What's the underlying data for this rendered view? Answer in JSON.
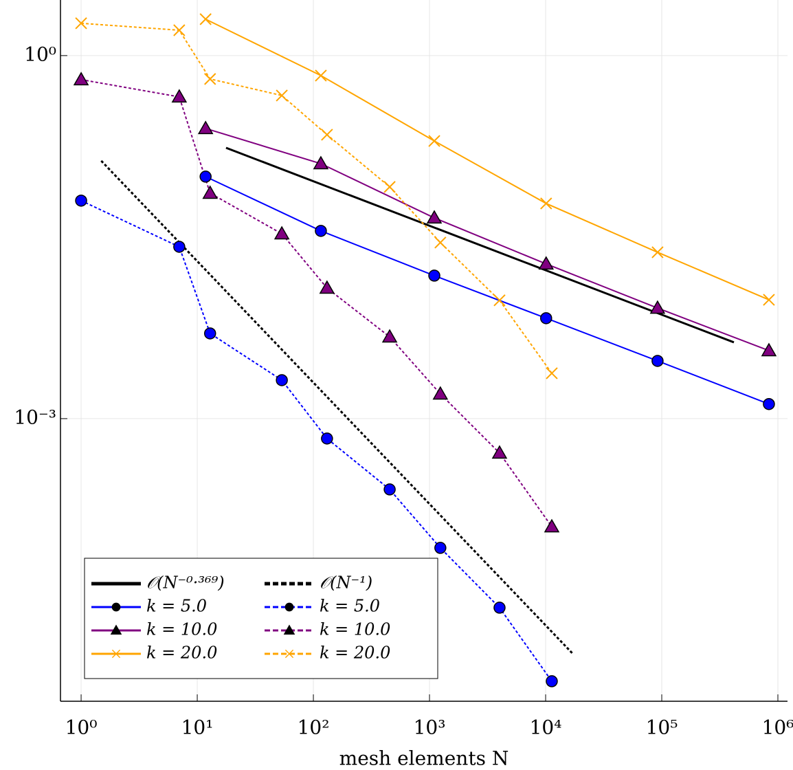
{
  "chart_data": {
    "type": "line",
    "xlabel": "mesh elements N",
    "xscale": "log",
    "yscale": "log",
    "grid": true,
    "xlim": [
      0.664,
      1210000
    ],
    "ylim": [
      4.62e-06,
      2.88
    ],
    "xticks": [
      {
        "value": 1,
        "label": "10⁰"
      },
      {
        "value": 10,
        "label": "10¹"
      },
      {
        "value": 100,
        "label": "10²"
      },
      {
        "value": 1000,
        "label": "10³"
      },
      {
        "value": 10000,
        "label": "10⁴"
      },
      {
        "value": 100000,
        "label": "10⁵"
      },
      {
        "value": 1000000,
        "label": "10⁶"
      }
    ],
    "yticks": [
      {
        "value": 1,
        "label": "10⁰"
      },
      {
        "value": 0.001,
        "label": "10⁻³"
      }
    ],
    "legend": "lower left",
    "series": [
      {
        "name": "𝒪(N⁻⁰·³⁶⁹)",
        "color": "#000000",
        "style": "solid",
        "x": [
          17.7,
          418000
        ],
        "values": [
          0.173,
          0.00427
        ]
      },
      {
        "name": "k = 5.0",
        "color": "#0000ff",
        "style": "solid",
        "marker": "circle",
        "x": [
          11.8,
          116,
          1100,
          10100,
          92000,
          837000
        ],
        "values": [
          0.1,
          0.0356,
          0.0152,
          0.00676,
          0.003,
          0.00132
        ]
      },
      {
        "name": "k = 10.0",
        "color": "#800080",
        "style": "solid",
        "marker": "triangle",
        "x": [
          11.8,
          116,
          1100,
          10100,
          92000,
          837000
        ],
        "values": [
          0.25,
          0.128,
          0.0456,
          0.019,
          0.0082,
          0.00365
        ]
      },
      {
        "name": "k = 20.0",
        "color": "#ffa500",
        "style": "solid",
        "marker": "cross",
        "x": [
          11.8,
          116,
          1100,
          10100,
          92000,
          837000
        ],
        "values": [
          2.0,
          0.684,
          0.197,
          0.06,
          0.0237,
          0.0096
        ]
      },
      {
        "name": "𝒪(N⁻¹)",
        "color": "#000000",
        "style": "dotted",
        "x": [
          1.49,
          17000
        ],
        "values": [
          0.135,
          1.15e-05
        ]
      },
      {
        "name": "k = 5.0",
        "color": "#0000ff",
        "style": "dotted",
        "marker": "circle",
        "x": [
          1,
          7.0,
          12.9,
          53.5,
          131,
          454,
          1240,
          4010,
          11300
        ],
        "values": [
          0.0633,
          0.0263,
          0.00506,
          0.00208,
          0.000685,
          0.00026,
          8.55e-05,
          2.74e-05,
          6.76e-06
        ]
      },
      {
        "name": "k = 10.0",
        "color": "#800080",
        "style": "dotted",
        "marker": "triangle",
        "x": [
          1,
          7.0,
          12.9,
          53.5,
          131,
          454,
          1240,
          4010,
          11300
        ],
        "values": [
          0.633,
          0.456,
          0.073,
          0.0337,
          0.012,
          0.00474,
          0.0016,
          0.00052,
          0.000128
        ]
      },
      {
        "name": "k = 20.0",
        "color": "#ffa500",
        "style": "dotted",
        "marker": "cross",
        "x": [
          1,
          7.0,
          12.9,
          53.5,
          131,
          454,
          1240,
          4010,
          11300
        ],
        "values": [
          1.85,
          1.62,
          0.641,
          0.468,
          0.222,
          0.0822,
          0.0285,
          0.0095,
          0.00237
        ]
      }
    ]
  }
}
